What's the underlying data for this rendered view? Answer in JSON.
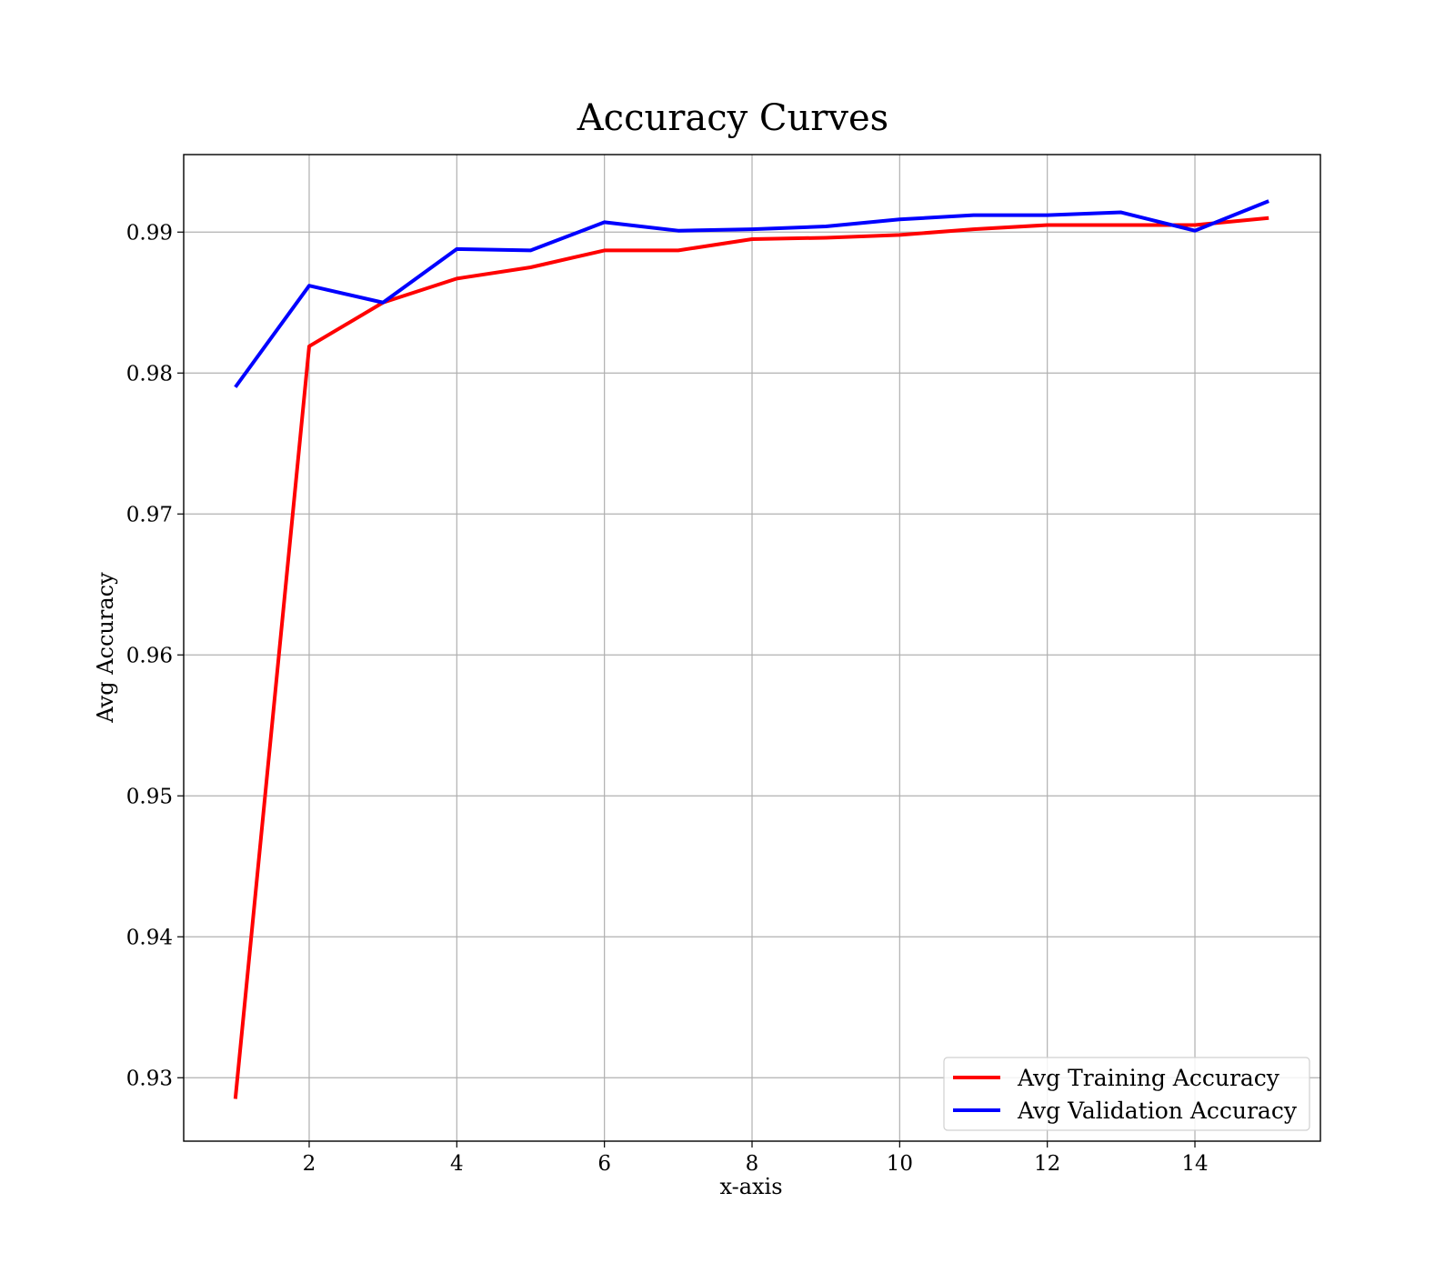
{
  "chart_data": {
    "type": "line",
    "title": "Accuracy Curves",
    "xlabel": "x-axis",
    "ylabel": "Avg Accuracy",
    "xlim": [
      0.3,
      15.7
    ],
    "ylim": [
      0.9255,
      0.9955
    ],
    "xticks": [
      2,
      4,
      6,
      8,
      10,
      12,
      14
    ],
    "yticks": [
      0.93,
      0.94,
      0.95,
      0.96,
      0.97,
      0.98,
      0.99
    ],
    "xtick_labels": [
      "2",
      "4",
      "6",
      "8",
      "10",
      "12",
      "14"
    ],
    "ytick_labels": [
      "0.93",
      "0.94",
      "0.95",
      "0.96",
      "0.97",
      "0.98",
      "0.99"
    ],
    "grid": true,
    "legend_position": "lower-right",
    "x": [
      1,
      2,
      3,
      4,
      5,
      6,
      7,
      8,
      9,
      10,
      11,
      12,
      13,
      14,
      15
    ],
    "series": [
      {
        "name": "Avg Training Accuracy",
        "color": "#ff0000",
        "values": [
          0.9285,
          0.9819,
          0.985,
          0.9867,
          0.9875,
          0.9887,
          0.9887,
          0.9895,
          0.9896,
          0.9898,
          0.9902,
          0.9905,
          0.9905,
          0.9905,
          0.991
        ]
      },
      {
        "name": "Avg Validation Accuracy",
        "color": "#0000ff",
        "values": [
          0.979,
          0.9862,
          0.985,
          0.9888,
          0.9887,
          0.9907,
          0.9901,
          0.9902,
          0.9904,
          0.9909,
          0.9912,
          0.9912,
          0.9914,
          0.9901,
          0.9922
        ]
      }
    ]
  }
}
